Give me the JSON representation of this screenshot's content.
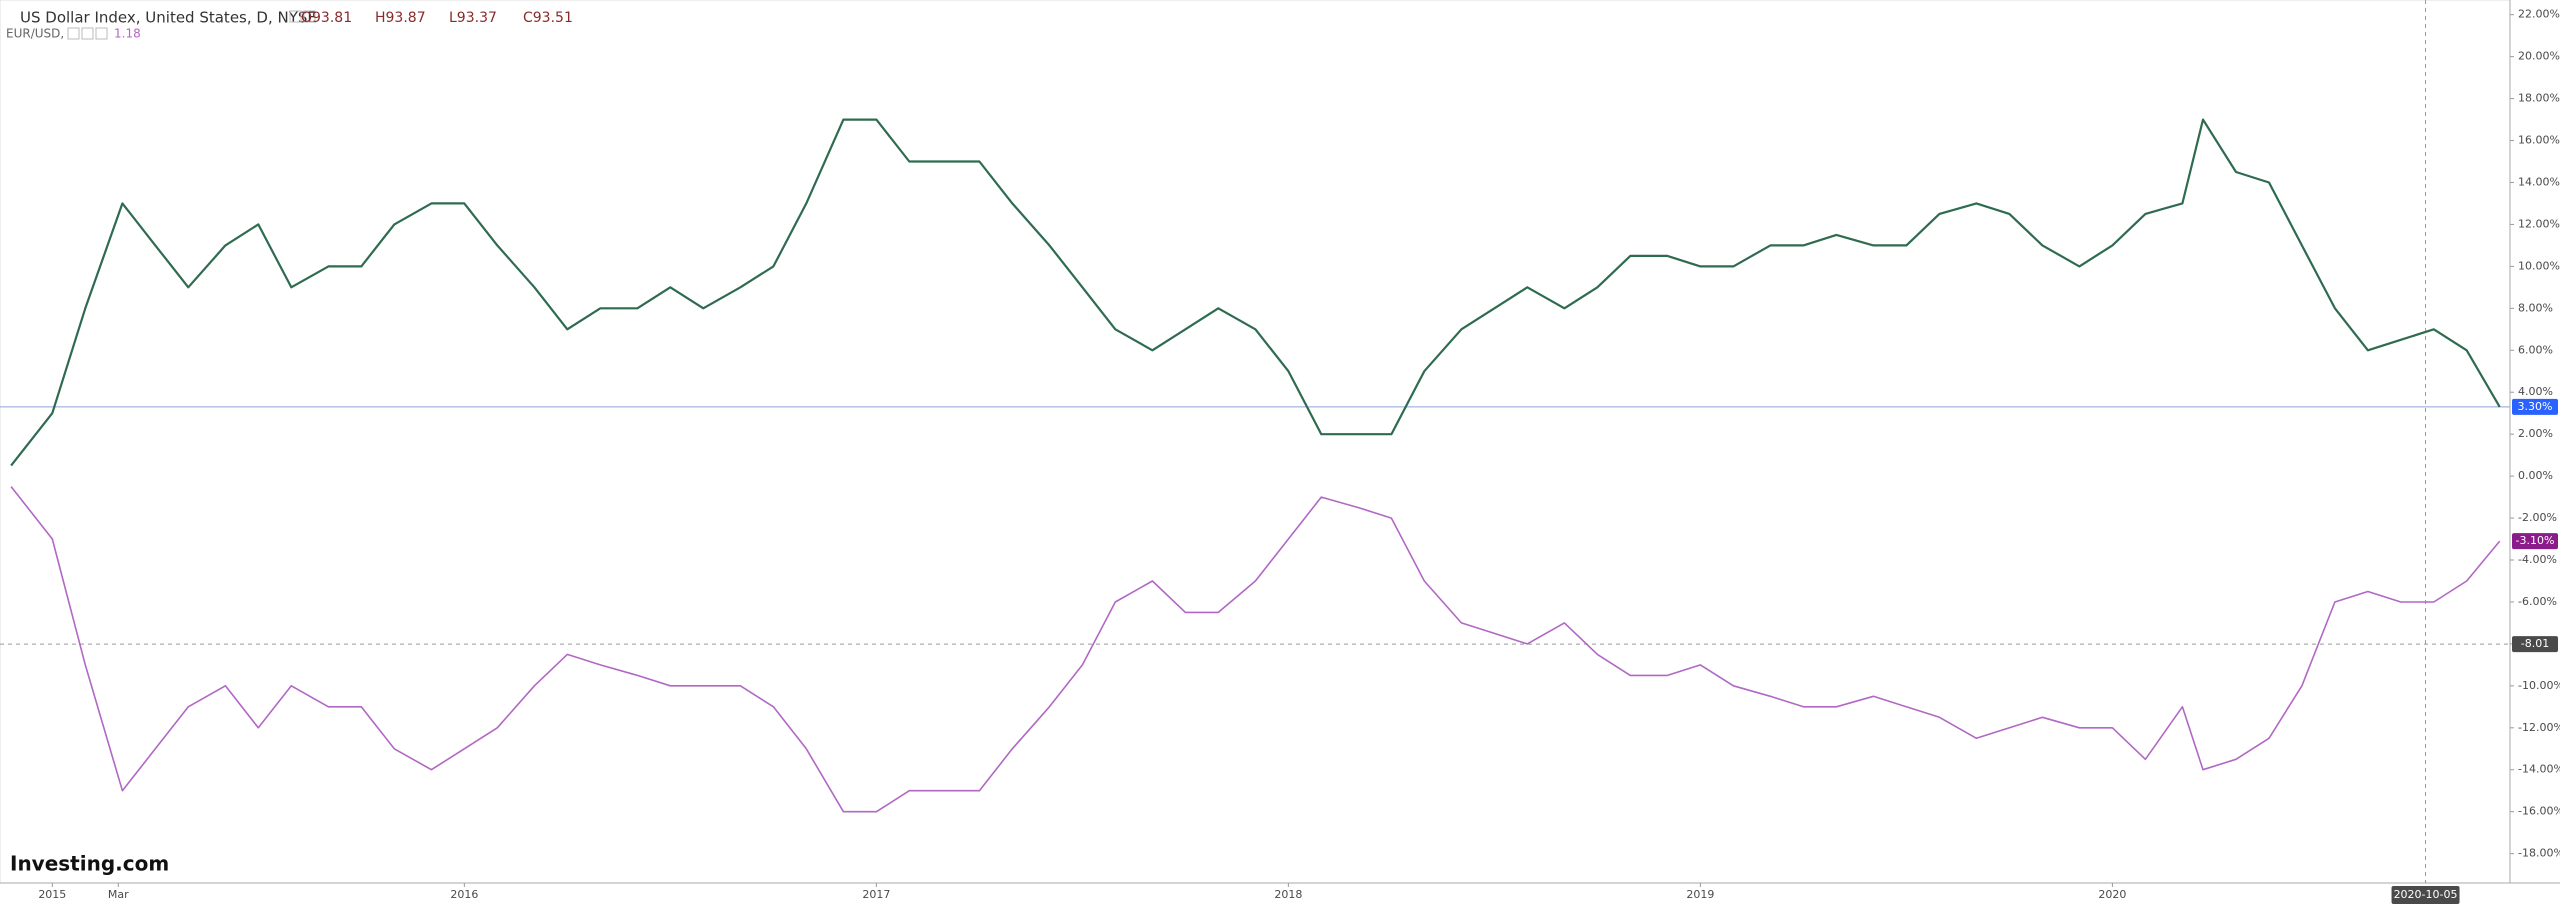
{
  "chart_data": {
    "type": "line",
    "title": "US Dollar Index, United States, D, NYSE",
    "ohlc_labels": [
      "O93.81",
      "H93.87",
      "L93.37",
      "C93.51"
    ],
    "compare_label": "EUR/USD,",
    "compare_value": "1.18",
    "logo": "Investing.com",
    "x": [
      2014.9,
      2015.0,
      2015.08,
      2015.17,
      2015.25,
      2015.33,
      2015.42,
      2015.5,
      2015.58,
      2015.67,
      2015.75,
      2015.83,
      2015.92,
      2016.0,
      2016.08,
      2016.17,
      2016.25,
      2016.33,
      2016.42,
      2016.5,
      2016.58,
      2016.67,
      2016.75,
      2016.83,
      2016.92,
      2017.0,
      2017.08,
      2017.17,
      2017.25,
      2017.33,
      2017.42,
      2017.5,
      2017.58,
      2017.67,
      2017.75,
      2017.83,
      2017.92,
      2018.0,
      2018.08,
      2018.17,
      2018.25,
      2018.33,
      2018.42,
      2018.5,
      2018.58,
      2018.67,
      2018.75,
      2018.83,
      2018.92,
      2019.0,
      2019.08,
      2019.17,
      2019.25,
      2019.33,
      2019.42,
      2019.5,
      2019.58,
      2019.67,
      2019.75,
      2019.83,
      2019.92,
      2020.0,
      2020.08,
      2020.17,
      2020.22,
      2020.3,
      2020.38,
      2020.46,
      2020.54,
      2020.62,
      2020.7,
      2020.78,
      2020.86,
      2020.94
    ],
    "series": [
      {
        "name": "US Dollar Index",
        "color": "#2e6b4f",
        "values": [
          0.5,
          3,
          8,
          13,
          11,
          9,
          11,
          12,
          9,
          10,
          10,
          12,
          13,
          13,
          11,
          9,
          7,
          8,
          8,
          9,
          8,
          9,
          10,
          13,
          17,
          17,
          15,
          15,
          15,
          13,
          11,
          9,
          7,
          6,
          7,
          8,
          7,
          5,
          2,
          2,
          2,
          5,
          7,
          8,
          9,
          8,
          9,
          10.5,
          10.5,
          10,
          10,
          11,
          11,
          11.5,
          11,
          11,
          12.5,
          13,
          12.5,
          11,
          10,
          11,
          12.5,
          13,
          17,
          14.5,
          14,
          11,
          8,
          6,
          6.5,
          7,
          6,
          3.3
        ]
      },
      {
        "name": "EUR/USD",
        "color": "#b168c4",
        "values": [
          -0.5,
          -3,
          -9,
          -15,
          -13,
          -11,
          -10,
          -12,
          -10,
          -11,
          -11,
          -13,
          -14,
          -13,
          -12,
          -10,
          -8.5,
          -9,
          -9.5,
          -10,
          -10,
          -10,
          -11,
          -13,
          -16,
          -16,
          -15,
          -15,
          -15,
          -13,
          -11,
          -9,
          -6,
          -5,
          -6.5,
          -6.5,
          -5,
          -3,
          -1,
          -1.5,
          -2,
          -5,
          -7,
          -7.5,
          -8,
          -7,
          -8.5,
          -9.5,
          -9.5,
          -9,
          -10,
          -10.5,
          -11,
          -11,
          -10.5,
          -11,
          -11.5,
          -12.5,
          -12,
          -11.5,
          -12,
          -12,
          -13.5,
          -11,
          -14,
          -13.5,
          -12.5,
          -10,
          -6,
          -5.5,
          -6,
          -6,
          -5,
          -3.1
        ]
      }
    ],
    "last_labels": [
      {
        "value": 3.3,
        "label": "3.30%",
        "color": "#2962ff"
      },
      {
        "value": -3.1,
        "label": "-3.10%",
        "color": "#8b1a8b"
      }
    ],
    "crosshair": {
      "x": {
        "value": 2020.76,
        "label": "2020-10-05"
      },
      "y": {
        "value": -8.01,
        "label": "-8.01"
      }
    },
    "xlim": [
      2014.873,
      2020.965
    ],
    "xticks": [
      {
        "value": 2015,
        "label": "2015"
      },
      {
        "value": 2015.16,
        "label": "Mar"
      },
      {
        "value": 2016,
        "label": "2016"
      },
      {
        "value": 2017,
        "label": "2017"
      },
      {
        "value": 2018,
        "label": "2018"
      },
      {
        "value": 2019,
        "label": "2019"
      },
      {
        "value": 2020,
        "label": "2020"
      }
    ],
    "ylim": [
      -19.4,
      22.7
    ],
    "yticks": [
      {
        "value": 22,
        "label": "22.00%"
      },
      {
        "value": 20,
        "label": "20.00%"
      },
      {
        "value": 18,
        "label": "18.00%"
      },
      {
        "value": 16,
        "label": "16.00%"
      },
      {
        "value": 14,
        "label": "14.00%"
      },
      {
        "value": 12,
        "label": "12.00%"
      },
      {
        "value": 10,
        "label": "10.00%"
      },
      {
        "value": 8,
        "label": "8.00%"
      },
      {
        "value": 6,
        "label": "6.00%"
      },
      {
        "value": 4,
        "label": "4.00%"
      },
      {
        "value": 2,
        "label": "2.00%"
      },
      {
        "value": 0,
        "label": "0.00%"
      },
      {
        "value": -2,
        "label": "-2.00%"
      },
      {
        "value": -4,
        "label": "-4.00%"
      },
      {
        "value": -6,
        "label": "-6.00%"
      },
      {
        "value": -8,
        "label": "-8.00%"
      },
      {
        "value": -10,
        "label": "-10.00%"
      },
      {
        "value": -12,
        "label": "-12.00%"
      },
      {
        "value": -14,
        "label": "-14.00%"
      },
      {
        "value": -16,
        "label": "-16.00%"
      },
      {
        "value": -18,
        "label": "-18.00%"
      }
    ],
    "grid": false
  }
}
